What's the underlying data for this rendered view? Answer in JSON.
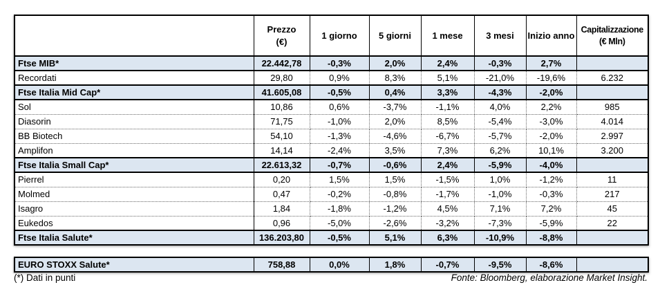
{
  "colors": {
    "index_row_bg": "#dce6f1",
    "solid_border": "#000000",
    "dotted_border": "#666666",
    "text": "#000000",
    "background": "#ffffff"
  },
  "chart_data": {
    "type": "table",
    "columns": [
      {
        "label": "",
        "sub": ""
      },
      {
        "label": "Prezzo",
        "sub": "(€)"
      },
      {
        "label": "1 giorno",
        "sub": ""
      },
      {
        "label": "5 giorni",
        "sub": ""
      },
      {
        "label": "1 mese",
        "sub": ""
      },
      {
        "label": "3 mesi",
        "sub": ""
      },
      {
        "label": "Inizio anno",
        "sub": ""
      },
      {
        "label": "Capitalizzazione",
        "sub": "(€ Mln)"
      }
    ],
    "rows": [
      {
        "name": "Ftse MIB*",
        "style": "index",
        "values": [
          "22.442,78",
          "-0,3%",
          "2,0%",
          "2,4%",
          "-0,3%",
          "2,7%",
          ""
        ]
      },
      {
        "name": "Recordati",
        "style": "stock",
        "values": [
          "29,80",
          "0,9%",
          "8,3%",
          "5,1%",
          "-21,0%",
          "-19,6%",
          "6.232"
        ]
      },
      {
        "name": "Ftse Italia Mid Cap*",
        "style": "index",
        "values": [
          "41.605,08",
          "-0,5%",
          "0,4%",
          "3,3%",
          "-4,3%",
          "-2,0%",
          ""
        ]
      },
      {
        "name": "Sol",
        "style": "stock",
        "values": [
          "10,86",
          "0,6%",
          "-3,7%",
          "-1,1%",
          "4,0%",
          "2,2%",
          "985"
        ]
      },
      {
        "name": "Diasorin",
        "style": "stock",
        "values": [
          "71,75",
          "-1,0%",
          "2,0%",
          "8,5%",
          "-5,4%",
          "-3,0%",
          "4.014"
        ]
      },
      {
        "name": "BB Biotech",
        "style": "stock",
        "values": [
          "54,10",
          "-1,3%",
          "-4,6%",
          "-6,7%",
          "-5,7%",
          "-2,0%",
          "2.997"
        ]
      },
      {
        "name": "Amplifon",
        "style": "stock",
        "values": [
          "14,14",
          "-2,4%",
          "3,5%",
          "7,3%",
          "6,2%",
          "10,1%",
          "3.200"
        ]
      },
      {
        "name": "Ftse Italia Small Cap*",
        "style": "index",
        "values": [
          "22.613,32",
          "-0,7%",
          "-0,6%",
          "2,4%",
          "-5,9%",
          "-4,0%",
          ""
        ]
      },
      {
        "name": "Pierrel",
        "style": "stock",
        "values": [
          "0,20",
          "1,5%",
          "1,5%",
          "-1,5%",
          "1,0%",
          "-1,2%",
          "11"
        ]
      },
      {
        "name": "Molmed",
        "style": "stock",
        "values": [
          "0,47",
          "-0,2%",
          "-0,8%",
          "-1,7%",
          "-1,0%",
          "-0,3%",
          "217"
        ]
      },
      {
        "name": "Isagro",
        "style": "stock",
        "values": [
          "1,84",
          "-1,8%",
          "-1,2%",
          "4,5%",
          "7,1%",
          "7,2%",
          "45"
        ]
      },
      {
        "name": "Eukedos",
        "style": "stock",
        "values": [
          "0,96",
          "-5,0%",
          "-2,6%",
          "-3,2%",
          "-7,3%",
          "-5,9%",
          "22"
        ]
      },
      {
        "name": "Ftse Italia Salute*",
        "style": "index",
        "values": [
          "136.203,80",
          "-0,5%",
          "5,1%",
          "6,3%",
          "-10,9%",
          "-8,8%",
          ""
        ]
      }
    ],
    "separate_rows": [
      {
        "name": "EURO STOXX Salute*",
        "style": "index",
        "values": [
          "758,88",
          "0,0%",
          "1,8%",
          "-0,7%",
          "-9,5%",
          "-8,6%",
          ""
        ]
      }
    ],
    "footnote": "(*) Dati in punti",
    "source": "Fonte: Bloomberg, elaborazione Market Insight."
  }
}
